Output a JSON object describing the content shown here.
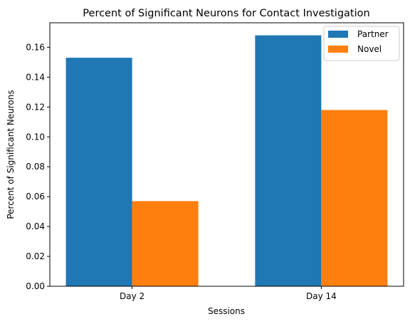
{
  "chart_data": {
    "type": "bar",
    "title": "Percent of Significant Neurons for Contact Investigation",
    "xlabel": "Sessions",
    "ylabel": "Percent of Significant Neurons",
    "categories": [
      "Day 2",
      "Day 14"
    ],
    "series": [
      {
        "name": "Partner",
        "values": [
          0.153,
          0.168
        ],
        "color": "#1f77b4"
      },
      {
        "name": "Novel",
        "values": [
          0.057,
          0.118
        ],
        "color": "#ff7f0e"
      }
    ],
    "ylim": [
      0,
      0.1764
    ],
    "yticks": [
      0.0,
      0.02,
      0.04,
      0.06,
      0.08,
      0.1,
      0.12,
      0.14,
      0.16
    ],
    "ytick_labels": [
      "0.00",
      "0.02",
      "0.04",
      "0.06",
      "0.08",
      "0.10",
      "0.12",
      "0.14",
      "0.16"
    ],
    "grid": false,
    "legend_position": "top-right"
  }
}
